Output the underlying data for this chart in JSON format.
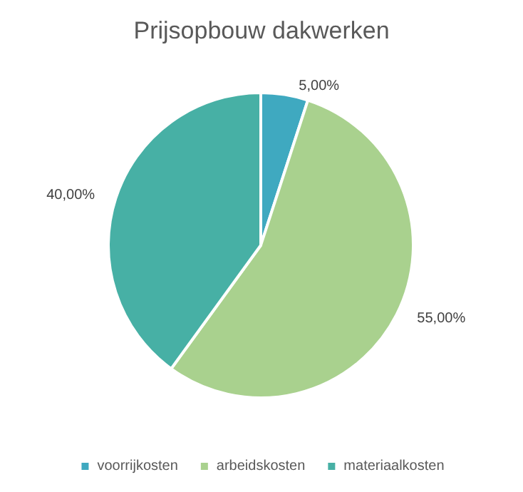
{
  "chart_data": {
    "type": "pie",
    "title": "Prijsopbouw dakwerken",
    "categories": [
      "voorrijkosten",
      "arbeidskosten",
      "materiaalkosten"
    ],
    "values": [
      5,
      55,
      40
    ],
    "colors": [
      "#3fa9c0",
      "#a9d18e",
      "#47b0a5"
    ],
    "value_labels": [
      "5,00%",
      "55,00%",
      "40,00%"
    ],
    "legend": "bottom"
  }
}
